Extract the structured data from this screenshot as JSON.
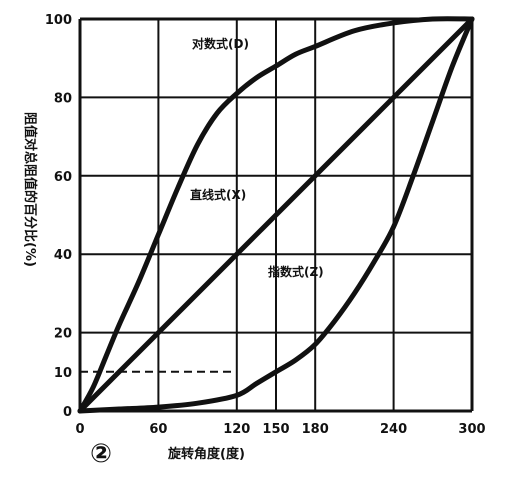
{
  "figure_number": "②",
  "chart_data": {
    "type": "line",
    "xlabel": "旋转角度(度)",
    "ylabel": "阻值对总阻值的百分比(%)",
    "xlim": [
      0,
      300
    ],
    "ylim": [
      0,
      100
    ],
    "x_ticks": [
      0,
      60,
      120,
      150,
      180,
      240,
      300
    ],
    "x_tick_labels": [
      "0",
      "60",
      "120",
      "150",
      "180",
      "240",
      "300"
    ],
    "y_ticks": [
      0,
      10,
      20,
      40,
      60,
      80,
      100
    ],
    "y_tick_labels": [
      "0",
      "10",
      "20",
      "40",
      "60",
      "80",
      "100"
    ],
    "grid": true,
    "reference_line": {
      "y": 10,
      "style": "dashed"
    },
    "series": [
      {
        "name": "对数式(D)",
        "x": [
          0,
          10,
          20,
          30,
          45,
          60,
          75,
          90,
          105,
          120,
          135,
          150,
          165,
          180,
          210,
          240,
          270,
          300
        ],
        "y": [
          0,
          6,
          14,
          22,
          33,
          45,
          57,
          68,
          76,
          81,
          85,
          88,
          91,
          93,
          97,
          99,
          100,
          100
        ]
      },
      {
        "name": "直线式(X)",
        "x": [
          0,
          300
        ],
        "y": [
          0,
          100
        ]
      },
      {
        "name": "指数式(Z)",
        "x": [
          0,
          30,
          60,
          90,
          120,
          135,
          150,
          165,
          180,
          195,
          210,
          225,
          240,
          255,
          270,
          285,
          300
        ],
        "y": [
          0,
          0.5,
          1,
          2,
          4,
          7,
          10,
          13,
          17,
          23,
          30,
          38,
          47,
          60,
          74,
          88,
          100
        ]
      }
    ]
  }
}
